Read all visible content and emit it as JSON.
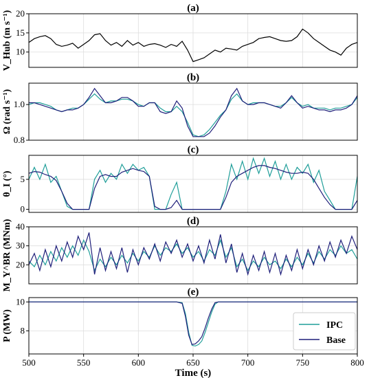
{
  "chart_data": [
    {
      "type": "line",
      "id": "a",
      "title": "(a)",
      "ylabel": "V_Hub (m s⁻¹)",
      "xlim": [
        500,
        800
      ],
      "ylim": [
        6,
        20
      ],
      "yticks": [
        10,
        15,
        20
      ],
      "series": [
        {
          "color": "#000000",
          "x": [
            500,
            505,
            510,
            515,
            520,
            525,
            530,
            535,
            540,
            545,
            550,
            555,
            560,
            565,
            570,
            575,
            580,
            585,
            590,
            595,
            600,
            605,
            610,
            615,
            620,
            625,
            630,
            635,
            640,
            645,
            650,
            655,
            660,
            665,
            670,
            675,
            680,
            685,
            690,
            695,
            700,
            705,
            710,
            715,
            720,
            725,
            730,
            735,
            740,
            745,
            750,
            755,
            760,
            765,
            770,
            775,
            780,
            785,
            790,
            795,
            800
          ],
          "y": [
            12.5,
            13.5,
            14.0,
            14.3,
            13.5,
            12.0,
            11.5,
            11.8,
            12.3,
            11.0,
            12.0,
            13.0,
            14.5,
            14.8,
            13.0,
            11.8,
            12.5,
            11.5,
            13.0,
            11.8,
            12.5,
            11.5,
            12.0,
            12.2,
            11.8,
            11.2,
            12.0,
            11.5,
            12.8,
            10.5,
            7.5,
            8.0,
            8.5,
            9.5,
            10.5,
            10.0,
            11.0,
            10.8,
            10.5,
            11.5,
            12.0,
            12.5,
            13.5,
            13.8,
            14.0,
            13.5,
            13.0,
            12.8,
            13.0,
            14.0,
            16.0,
            15.0,
            13.5,
            12.5,
            11.5,
            10.5,
            10.0,
            9.2,
            11.0,
            12.0,
            12.5
          ]
        }
      ]
    },
    {
      "type": "line",
      "id": "b",
      "title": "(b)",
      "ylabel": "Ω (rad s⁻¹)",
      "xlim": [
        500,
        800
      ],
      "ylim": [
        0.8,
        1.12
      ],
      "yticks": [
        0.8,
        1.0
      ],
      "series": [
        {
          "name": "IPC",
          "color": "#1f9e99",
          "x": [
            500,
            505,
            510,
            515,
            520,
            525,
            530,
            535,
            540,
            545,
            550,
            555,
            560,
            565,
            570,
            575,
            580,
            585,
            590,
            595,
            600,
            605,
            610,
            615,
            620,
            625,
            630,
            635,
            640,
            645,
            650,
            655,
            660,
            665,
            670,
            675,
            680,
            685,
            690,
            695,
            700,
            705,
            710,
            715,
            720,
            725,
            730,
            735,
            740,
            745,
            750,
            755,
            760,
            765,
            770,
            775,
            780,
            785,
            790,
            795,
            800
          ],
          "y": [
            1.0,
            1.01,
            1.01,
            1.0,
            0.99,
            0.97,
            0.96,
            0.97,
            0.98,
            0.98,
            1.0,
            1.03,
            1.06,
            1.03,
            1.01,
            1.02,
            1.02,
            1.03,
            1.03,
            1.02,
            1.0,
            0.99,
            1.01,
            1.01,
            0.98,
            0.96,
            0.96,
            0.99,
            0.96,
            0.9,
            0.83,
            0.82,
            0.83,
            0.86,
            0.9,
            0.94,
            0.97,
            1.03,
            1.06,
            1.02,
            1.0,
            1.01,
            1.01,
            1.01,
            1.0,
            0.99,
            0.99,
            1.01,
            1.04,
            1.01,
            0.99,
            1.0,
            0.98,
            0.98,
            0.98,
            0.97,
            0.98,
            0.98,
            0.99,
            1.0,
            1.04
          ]
        },
        {
          "name": "Base",
          "color": "#1f1f7a",
          "x": [
            500,
            505,
            510,
            515,
            520,
            525,
            530,
            535,
            540,
            545,
            550,
            555,
            560,
            565,
            570,
            575,
            580,
            585,
            590,
            595,
            600,
            605,
            610,
            615,
            620,
            625,
            630,
            635,
            640,
            645,
            650,
            655,
            660,
            665,
            670,
            675,
            680,
            685,
            690,
            695,
            700,
            705,
            710,
            715,
            720,
            725,
            730,
            735,
            740,
            745,
            750,
            755,
            760,
            765,
            770,
            775,
            780,
            785,
            790,
            795,
            800
          ],
          "y": [
            1.01,
            1.01,
            1.0,
            0.99,
            0.98,
            0.97,
            0.96,
            0.97,
            0.97,
            0.98,
            1.0,
            1.04,
            1.09,
            1.05,
            1.01,
            1.01,
            1.02,
            1.04,
            1.04,
            1.02,
            0.99,
            0.99,
            1.01,
            1.01,
            0.96,
            0.95,
            0.96,
            1.02,
            0.98,
            0.88,
            0.82,
            0.82,
            0.82,
            0.84,
            0.88,
            0.93,
            0.97,
            1.05,
            1.09,
            1.02,
            1.0,
            1.0,
            1.01,
            1.01,
            1.0,
            0.99,
            0.98,
            1.01,
            1.05,
            1.01,
            0.98,
            0.99,
            0.98,
            0.97,
            0.97,
            0.96,
            0.97,
            0.97,
            0.98,
            1.0,
            1.05
          ]
        }
      ]
    },
    {
      "type": "line",
      "id": "c",
      "title": "(c)",
      "ylabel": "θ_I (°)",
      "xlim": [
        500,
        800
      ],
      "ylim": [
        -0.5,
        9
      ],
      "yticks": [
        0,
        5
      ],
      "series": [
        {
          "name": "IPC",
          "color": "#1f9e99",
          "x": [
            500,
            505,
            510,
            515,
            520,
            525,
            530,
            535,
            540,
            545,
            550,
            555,
            560,
            565,
            570,
            575,
            580,
            585,
            590,
            595,
            600,
            605,
            610,
            615,
            620,
            625,
            630,
            635,
            640,
            645,
            650,
            655,
            660,
            665,
            670,
            675,
            680,
            685,
            690,
            695,
            700,
            705,
            710,
            715,
            720,
            725,
            730,
            735,
            740,
            745,
            750,
            755,
            760,
            765,
            770,
            775,
            780,
            785,
            790,
            795,
            800
          ],
          "y": [
            5.0,
            7.0,
            5.0,
            7.5,
            4.5,
            5.5,
            3.0,
            0.5,
            0.0,
            0.0,
            0.0,
            0.0,
            5.0,
            6.5,
            4.5,
            6.0,
            5.0,
            7.5,
            6.0,
            7.5,
            6.5,
            7.0,
            5.5,
            0.0,
            0.0,
            0.0,
            2.5,
            4.5,
            0.0,
            0.0,
            0.0,
            0.0,
            0.0,
            0.0,
            0.0,
            0.0,
            3.0,
            7.5,
            5.0,
            8.0,
            5.0,
            8.5,
            6.0,
            8.5,
            5.5,
            8.0,
            5.0,
            7.5,
            5.0,
            7.0,
            6.0,
            7.5,
            4.5,
            6.5,
            3.0,
            1.5,
            0.0,
            0.0,
            0.0,
            0.0,
            5.5
          ]
        },
        {
          "name": "Base",
          "color": "#1f1f7a",
          "x": [
            500,
            505,
            510,
            515,
            520,
            525,
            530,
            535,
            540,
            545,
            550,
            555,
            560,
            565,
            570,
            575,
            580,
            585,
            590,
            595,
            600,
            605,
            610,
            615,
            620,
            625,
            630,
            635,
            640,
            645,
            650,
            655,
            660,
            665,
            670,
            675,
            680,
            685,
            690,
            695,
            700,
            705,
            710,
            715,
            720,
            725,
            730,
            735,
            740,
            745,
            750,
            755,
            760,
            765,
            770,
            775,
            780,
            785,
            790,
            795,
            800
          ],
          "y": [
            6.0,
            6.3,
            6.2,
            5.8,
            5.5,
            4.8,
            3.0,
            1.0,
            0.0,
            0.0,
            0.0,
            0.0,
            3.5,
            5.5,
            5.8,
            5.5,
            5.5,
            6.2,
            6.5,
            6.8,
            6.5,
            6.3,
            5.5,
            0.5,
            0.0,
            0.0,
            0.3,
            1.5,
            0.0,
            0.0,
            0.0,
            0.0,
            0.0,
            0.0,
            0.0,
            0.0,
            2.0,
            4.5,
            5.5,
            6.0,
            6.5,
            7.0,
            7.3,
            7.3,
            7.0,
            6.8,
            6.5,
            6.2,
            6.0,
            6.0,
            6.2,
            6.0,
            5.0,
            3.5,
            2.0,
            0.8,
            0.0,
            0.0,
            0.0,
            0.0,
            1.5
          ]
        }
      ]
    },
    {
      "type": "line",
      "id": "d",
      "title": "(d)",
      "ylabel": "M_Y^BR (MNm)",
      "xlim": [
        500,
        800
      ],
      "ylim": [
        10,
        40
      ],
      "yticks": [
        20,
        30,
        40
      ],
      "series": [
        {
          "name": "IPC",
          "color": "#1f9e99",
          "x": [
            500,
            505,
            510,
            515,
            520,
            525,
            530,
            535,
            540,
            545,
            550,
            555,
            560,
            565,
            570,
            575,
            580,
            585,
            590,
            595,
            600,
            605,
            610,
            615,
            620,
            625,
            630,
            635,
            640,
            645,
            650,
            655,
            660,
            665,
            670,
            675,
            680,
            685,
            690,
            695,
            700,
            705,
            710,
            715,
            720,
            725,
            730,
            735,
            740,
            745,
            750,
            755,
            760,
            765,
            770,
            775,
            780,
            785,
            790,
            795,
            800
          ],
          "y": [
            22,
            19,
            25,
            20,
            27,
            22,
            29,
            24,
            30,
            25,
            33,
            27,
            17,
            23,
            19,
            24,
            20,
            25,
            21,
            26,
            22,
            27,
            24,
            30,
            25,
            29,
            27,
            31,
            26,
            29,
            24,
            27,
            22,
            28,
            25,
            33,
            24,
            29,
            19,
            23,
            17,
            22,
            19,
            24,
            20,
            22,
            18,
            23,
            19,
            24,
            20,
            26,
            21,
            27,
            23,
            28,
            25,
            30,
            26,
            28,
            23
          ]
        },
        {
          "name": "Base",
          "color": "#1f1f7a",
          "x": [
            500,
            505,
            510,
            515,
            520,
            525,
            530,
            535,
            540,
            545,
            550,
            555,
            560,
            565,
            570,
            575,
            580,
            585,
            590,
            595,
            600,
            605,
            610,
            615,
            620,
            625,
            630,
            635,
            640,
            645,
            650,
            655,
            660,
            665,
            670,
            675,
            680,
            685,
            690,
            695,
            700,
            705,
            710,
            715,
            720,
            725,
            730,
            735,
            740,
            745,
            750,
            755,
            760,
            765,
            770,
            775,
            780,
            785,
            790,
            795,
            800
          ],
          "y": [
            20,
            26,
            17,
            28,
            19,
            30,
            22,
            32,
            24,
            35,
            28,
            37,
            15,
            29,
            17,
            27,
            18,
            29,
            16,
            28,
            20,
            29,
            23,
            31,
            22,
            32,
            26,
            33,
            24,
            31,
            22,
            30,
            21,
            33,
            23,
            36,
            21,
            31,
            16,
            26,
            15,
            25,
            17,
            27,
            16,
            26,
            15,
            25,
            17,
            28,
            18,
            28,
            20,
            30,
            22,
            32,
            24,
            33,
            26,
            35,
            28
          ]
        }
      ]
    },
    {
      "type": "line",
      "id": "e",
      "title": "(e)",
      "ylabel": "P (MW)",
      "xlabel": "Time (s)",
      "xlim": [
        500,
        800
      ],
      "ylim": [
        6.4,
        10.3
      ],
      "yticks": [
        8,
        10
      ],
      "xticks": [
        500,
        550,
        600,
        650,
        700,
        750,
        800
      ],
      "legend": "bottom-right",
      "series": [
        {
          "name": "IPC",
          "color": "#1f9e99",
          "x": [
            500,
            520,
            540,
            560,
            580,
            600,
            620,
            630,
            635,
            640,
            643,
            646,
            649,
            652,
            655,
            658,
            661,
            664,
            667,
            670,
            673,
            676,
            680,
            685,
            690,
            700,
            720,
            740,
            760,
            780,
            800
          ],
          "y": [
            10.0,
            10.0,
            10.0,
            10.0,
            10.0,
            10.0,
            10.0,
            10.0,
            10.0,
            9.95,
            9.2,
            7.9,
            7.0,
            6.95,
            7.05,
            7.3,
            7.9,
            8.6,
            9.3,
            9.85,
            10.0,
            10.0,
            10.0,
            10.0,
            10.0,
            10.0,
            10.0,
            10.0,
            10.0,
            10.0,
            10.0
          ]
        },
        {
          "name": "Base",
          "color": "#1f1f7a",
          "x": [
            500,
            520,
            540,
            560,
            580,
            600,
            620,
            630,
            635,
            640,
            643,
            646,
            649,
            652,
            655,
            658,
            661,
            664,
            667,
            670,
            673,
            676,
            680,
            685,
            690,
            700,
            720,
            740,
            760,
            780,
            800
          ],
          "y": [
            10.0,
            10.0,
            10.0,
            10.0,
            10.0,
            10.0,
            10.0,
            10.0,
            10.0,
            9.9,
            9.0,
            7.7,
            7.05,
            7.1,
            7.3,
            7.6,
            8.2,
            8.9,
            9.5,
            9.95,
            10.0,
            10.0,
            10.0,
            10.0,
            10.0,
            10.0,
            10.0,
            10.0,
            10.0,
            10.0,
            10.0
          ]
        }
      ]
    }
  ],
  "legend": {
    "items": [
      "IPC",
      "Base"
    ]
  }
}
